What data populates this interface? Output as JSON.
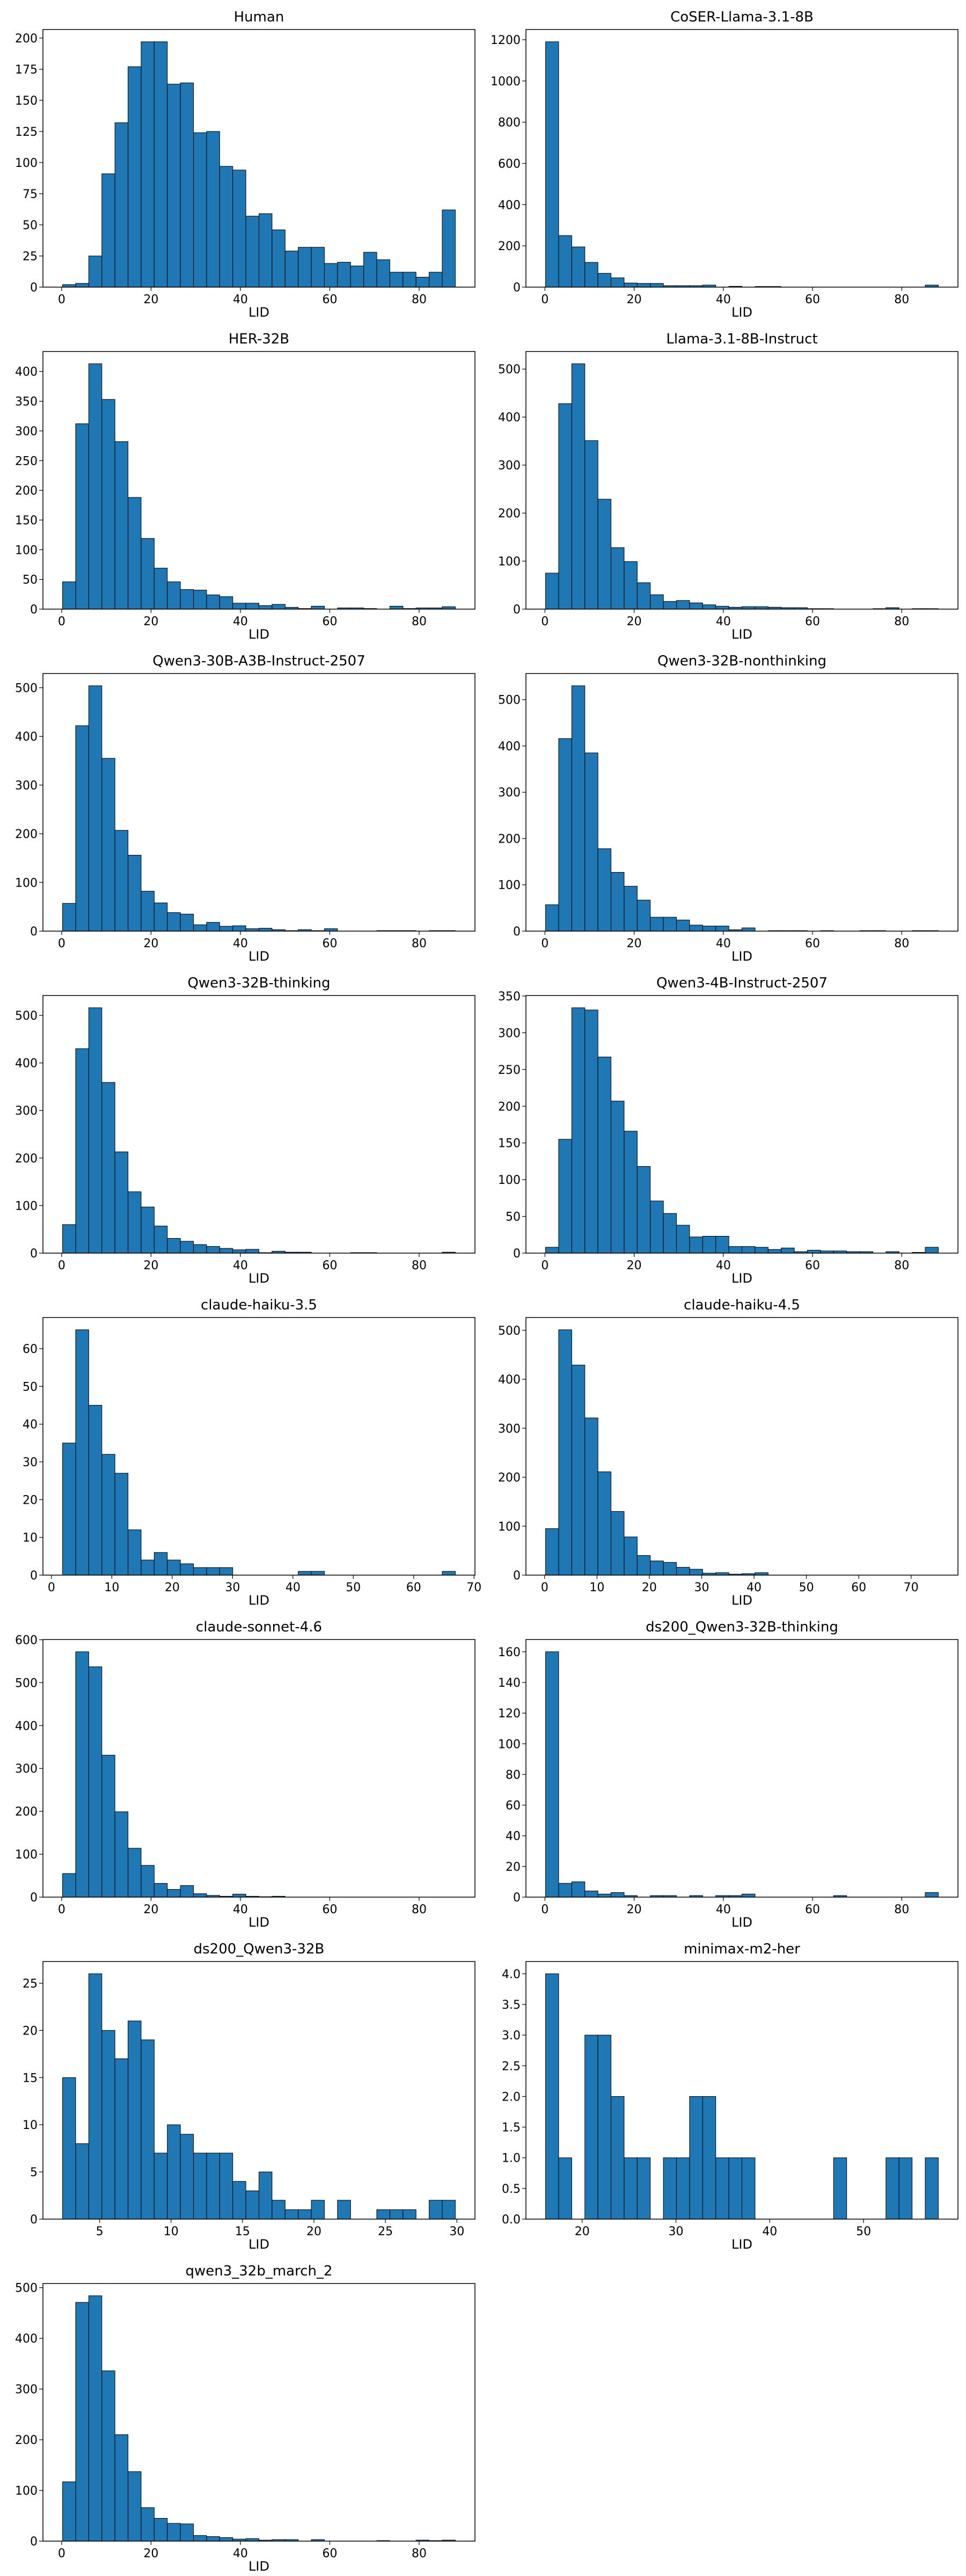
{
  "chart_data": [
    {
      "type": "bar",
      "title": "Human",
      "xlabel": "LID",
      "bin_range": [
        0.2,
        88.1
      ],
      "xticks": [
        "0",
        "20",
        "40",
        "60",
        "80"
      ],
      "yticks": [
        "0",
        "25",
        "50",
        "75",
        "100",
        "125",
        "150",
        "175",
        "200"
      ],
      "counts": [
        2,
        3,
        25,
        91,
        132,
        177,
        197,
        197,
        163,
        164,
        124,
        125,
        97,
        94,
        57,
        59,
        46,
        29,
        32,
        32,
        19,
        20,
        17,
        28,
        22,
        12,
        12,
        8,
        12,
        62
      ]
    },
    {
      "type": "bar",
      "title": "CoSER-Llama-3.1-8B",
      "xlabel": "LID",
      "bin_range": [
        0.14,
        88.2
      ],
      "xticks": [
        "0",
        "20",
        "40",
        "60",
        "80"
      ],
      "yticks": [
        "0",
        "200",
        "400",
        "600",
        "800",
        "1000",
        "1200"
      ],
      "counts": [
        1190,
        250,
        195,
        120,
        67,
        45,
        20,
        18,
        18,
        7,
        7,
        7,
        10,
        0,
        4,
        0,
        3,
        3,
        0,
        0,
        0,
        0,
        0,
        0,
        0,
        0,
        0,
        0,
        0,
        10
      ]
    },
    {
      "type": "bar",
      "title": "HER-32B",
      "xlabel": "LID",
      "bin_range": [
        0.2,
        88.1
      ],
      "xticks": [
        "0",
        "20",
        "40",
        "60",
        "80"
      ],
      "yticks": [
        "0",
        "50",
        "100",
        "150",
        "200",
        "250",
        "300",
        "350",
        "400"
      ],
      "counts": [
        46,
        312,
        413,
        353,
        282,
        188,
        119,
        69,
        46,
        33,
        32,
        24,
        21,
        10,
        10,
        6,
        8,
        3,
        1,
        5,
        0,
        2,
        2,
        1,
        0,
        5,
        1,
        2,
        2,
        4
      ]
    },
    {
      "type": "bar",
      "title": "Llama-3.1-8B-Instruct",
      "xlabel": "LID",
      "bin_range": [
        0.14,
        88.2
      ],
      "xticks": [
        "0",
        "20",
        "40",
        "60",
        "80"
      ],
      "yticks": [
        "0",
        "100",
        "200",
        "300",
        "400",
        "500"
      ],
      "counts": [
        75,
        428,
        511,
        351,
        229,
        128,
        99,
        55,
        30,
        16,
        18,
        13,
        9,
        6,
        4,
        5,
        5,
        4,
        3,
        3,
        1,
        1,
        0,
        0,
        0,
        1,
        3,
        0,
        1,
        1
      ]
    },
    {
      "type": "bar",
      "title": "Qwen3-30B-A3B-Instruct-2507",
      "xlabel": "LID",
      "bin_range": [
        0.2,
        88.1
      ],
      "xticks": [
        "0",
        "20",
        "40",
        "60",
        "80"
      ],
      "yticks": [
        "0",
        "100",
        "200",
        "300",
        "400",
        "500"
      ],
      "counts": [
        57,
        422,
        504,
        355,
        207,
        156,
        82,
        58,
        38,
        35,
        13,
        18,
        10,
        11,
        5,
        6,
        3,
        1,
        3,
        1,
        5,
        0,
        0,
        0,
        1,
        1,
        1,
        0,
        1,
        1
      ]
    },
    {
      "type": "bar",
      "title": "Qwen3-32B-nonthinking",
      "xlabel": "LID",
      "bin_range": [
        0.14,
        88.2
      ],
      "xticks": [
        "0",
        "20",
        "40",
        "60",
        "80"
      ],
      "yticks": [
        "0",
        "100",
        "200",
        "300",
        "400",
        "500"
      ],
      "counts": [
        57,
        416,
        530,
        385,
        178,
        127,
        97,
        67,
        30,
        30,
        24,
        13,
        11,
        11,
        3,
        7,
        0,
        1,
        1,
        1,
        0,
        1,
        0,
        0,
        1,
        1,
        0,
        0,
        1,
        1
      ]
    },
    {
      "type": "bar",
      "title": "Qwen3-32B-thinking",
      "xlabel": "LID",
      "bin_range": [
        0.2,
        88.1
      ],
      "xticks": [
        "0",
        "20",
        "40",
        "60",
        "80"
      ],
      "yticks": [
        "0",
        "100",
        "200",
        "300",
        "400",
        "500"
      ],
      "counts": [
        60,
        430,
        516,
        359,
        213,
        129,
        97,
        57,
        31,
        25,
        18,
        14,
        10,
        7,
        8,
        1,
        4,
        2,
        2,
        0,
        0,
        0,
        1,
        1,
        0,
        0,
        0,
        0,
        0,
        2
      ]
    },
    {
      "type": "bar",
      "title": "Qwen3-4B-Instruct-2507",
      "xlabel": "LID",
      "bin_range": [
        0.14,
        88.2
      ],
      "xticks": [
        "0",
        "20",
        "40",
        "60",
        "80"
      ],
      "yticks": [
        "0",
        "50",
        "100",
        "150",
        "200",
        "250",
        "300",
        "350"
      ],
      "counts": [
        8,
        155,
        334,
        331,
        267,
        207,
        166,
        118,
        71,
        54,
        38,
        22,
        23,
        23,
        9,
        9,
        8,
        5,
        7,
        2,
        4,
        3,
        3,
        2,
        2,
        0,
        2,
        0,
        1,
        8
      ]
    },
    {
      "type": "bar",
      "title": "claude-haiku-3.5",
      "xlabel": "LID",
      "bin_range": [
        1.84,
        66.9
      ],
      "xticks": [
        "0",
        "10",
        "20",
        "30",
        "40",
        "50",
        "60",
        "70"
      ],
      "yticks": [
        "0",
        "10",
        "20",
        "30",
        "40",
        "50",
        "60"
      ],
      "counts": [
        35,
        65,
        45,
        32,
        27,
        12,
        4,
        6,
        4,
        3,
        2,
        2,
        2,
        0,
        0,
        0,
        0,
        0,
        1,
        1,
        0,
        0,
        0,
        0,
        0,
        0,
        0,
        0,
        0,
        1
      ]
    },
    {
      "type": "bar",
      "title": "claude-haiku-4.5",
      "xlabel": "LID",
      "bin_range": [
        0.18,
        75.2
      ],
      "xticks": [
        "0",
        "10",
        "20",
        "30",
        "40",
        "50",
        "60",
        "70"
      ],
      "yticks": [
        "0",
        "100",
        "200",
        "300",
        "400",
        "500"
      ],
      "counts": [
        95,
        501,
        429,
        321,
        211,
        130,
        78,
        40,
        29,
        26,
        16,
        12,
        4,
        5,
        2,
        3,
        5,
        0,
        0,
        0,
        0,
        0,
        0,
        0,
        0,
        0,
        0,
        0,
        0,
        0
      ]
    },
    {
      "type": "bar",
      "title": "claude-sonnet-4.6",
      "xlabel": "LID",
      "bin_range": [
        0.2,
        88.1
      ],
      "xticks": [
        "0",
        "20",
        "40",
        "60",
        "80"
      ],
      "yticks": [
        "0",
        "100",
        "200",
        "300",
        "400",
        "500",
        "600"
      ],
      "counts": [
        55,
        572,
        537,
        331,
        199,
        114,
        74,
        32,
        18,
        27,
        8,
        4,
        2,
        7,
        2,
        1,
        2,
        0,
        0,
        0,
        0,
        0,
        0,
        0,
        0,
        0,
        0,
        0,
        0,
        0
      ]
    },
    {
      "type": "bar",
      "title": "ds200_Qwen3-32B-thinking",
      "xlabel": "LID",
      "bin_range": [
        0.14,
        88.2
      ],
      "xticks": [
        "0",
        "20",
        "40",
        "60",
        "80"
      ],
      "yticks": [
        "0",
        "20",
        "40",
        "60",
        "80",
        "100",
        "120",
        "140",
        "160"
      ],
      "counts": [
        160,
        9,
        10,
        4,
        2,
        3,
        1,
        0,
        1,
        1,
        0,
        1,
        0,
        1,
        1,
        2,
        0,
        0,
        0,
        0,
        0,
        0,
        1,
        0,
        0,
        0,
        0,
        0,
        0,
        3
      ]
    },
    {
      "type": "bar",
      "title": "ds200_Qwen3-32B",
      "xlabel": "LID",
      "bin_range": [
        2.41,
        29.89
      ],
      "xticks": [
        "5",
        "10",
        "15",
        "20",
        "25",
        "30"
      ],
      "yticks": [
        "0",
        "5",
        "10",
        "15",
        "20",
        "25"
      ],
      "counts": [
        15,
        8,
        26,
        20,
        17,
        21,
        19,
        7,
        10,
        9,
        7,
        7,
        7,
        4,
        3,
        5,
        2,
        1,
        1,
        2,
        0,
        2,
        0,
        0,
        1,
        1,
        1,
        0,
        2,
        2
      ]
    },
    {
      "type": "bar",
      "title": "minimax-m2-her",
      "xlabel": "LID",
      "bin_range": [
        16.1,
        57.97
      ],
      "xticks": [
        "20",
        "30",
        "40",
        "50"
      ],
      "yticks": [
        "0.0",
        "0.5",
        "1.0",
        "1.5",
        "2.0",
        "2.5",
        "3.0",
        "3.5",
        "4.0"
      ],
      "counts": [
        4,
        1,
        0,
        3,
        3,
        2,
        1,
        1,
        0,
        1,
        1,
        2,
        2,
        1,
        1,
        1,
        0,
        0,
        0,
        0,
        0,
        0,
        1,
        0,
        0,
        0,
        1,
        1,
        0,
        1
      ]
    },
    {
      "type": "bar",
      "title": "qwen3_32b_march_2",
      "xlabel": "LID",
      "bin_range": [
        0.2,
        88.1
      ],
      "xticks": [
        "0",
        "20",
        "40",
        "60",
        "80"
      ],
      "yticks": [
        "0",
        "100",
        "200",
        "300",
        "400",
        "500"
      ],
      "counts": [
        117,
        471,
        484,
        336,
        210,
        137,
        66,
        45,
        35,
        34,
        11,
        9,
        7,
        4,
        5,
        2,
        3,
        3,
        0,
        3,
        0,
        0,
        0,
        0,
        1,
        0,
        0,
        2,
        1,
        2
      ]
    }
  ],
  "colors": {
    "bar": "#1f77b4",
    "edge": "#000000"
  }
}
